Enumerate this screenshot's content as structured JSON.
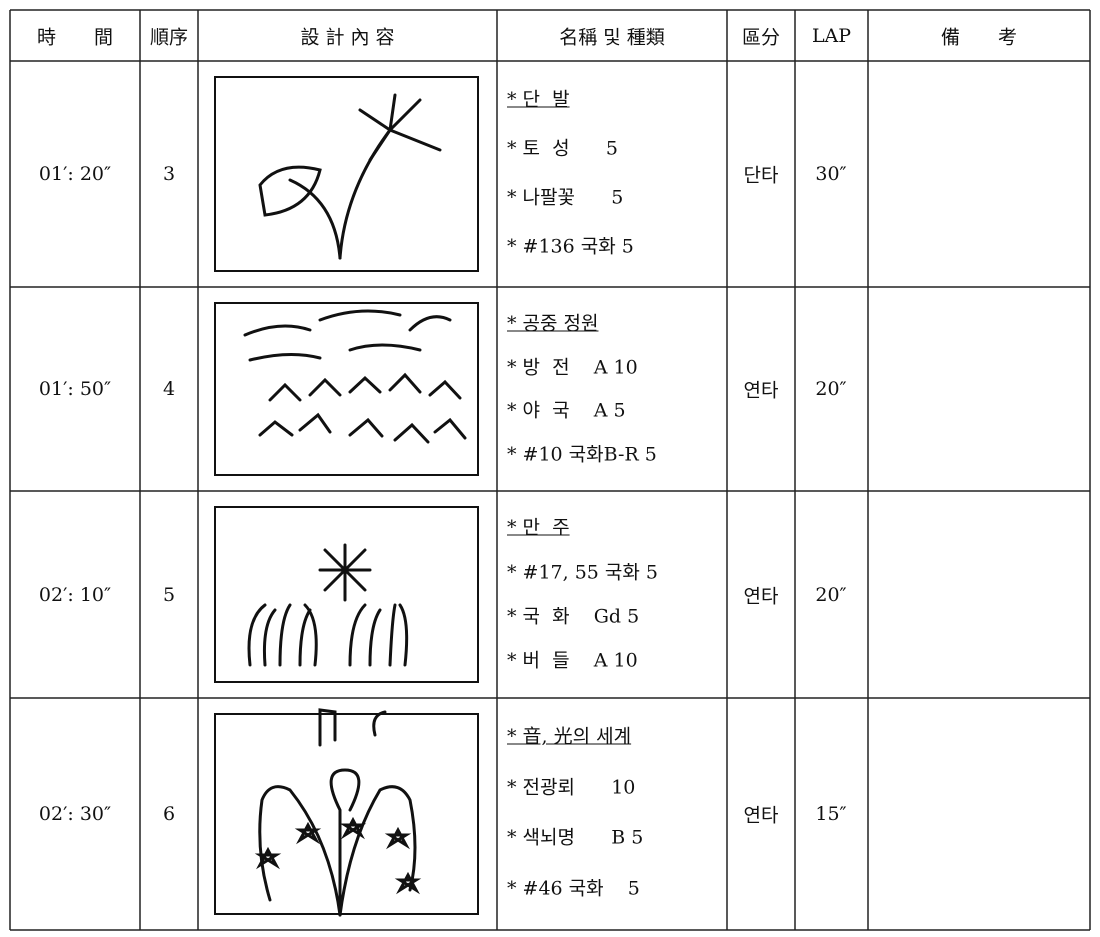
{
  "table": {
    "header": [
      "時　　間",
      "順序",
      "設 計 內 容",
      "名稱 및 種類",
      "區分",
      "LAP",
      "備　　考"
    ],
    "rows": [
      {
        "time": "01′: 20″",
        "order": "3",
        "items": [
          "* 단  발",
          "* 토  성      5",
          "* 나팔꽃      5",
          "* #136 국화 5"
        ],
        "category": "단타",
        "lap": "30″"
      },
      {
        "time": "01′: 50″",
        "order": "4",
        "items": [
          "* 공중 정원",
          "* 방  전    A 10",
          "* 야  국    A 5",
          "* #10 국화B-R 5"
        ],
        "category": "연타",
        "lap": "20″"
      },
      {
        "time": "02′: 10″",
        "order": "5",
        "items": [
          "* 만  주",
          "* #17, 55 국화 5",
          "* 국  화    Gd 5",
          "* 버  들    A 10"
        ],
        "category": "연타",
        "lap": "20″"
      },
      {
        "time": "02′: 30″",
        "order": "6",
        "items": [
          "* 音, 光의 세계",
          "* 전광뢰      10",
          "* 색뇌명      B 5",
          "* #46 국화    5"
        ],
        "category": "연타",
        "lap": "15″"
      }
    ]
  }
}
